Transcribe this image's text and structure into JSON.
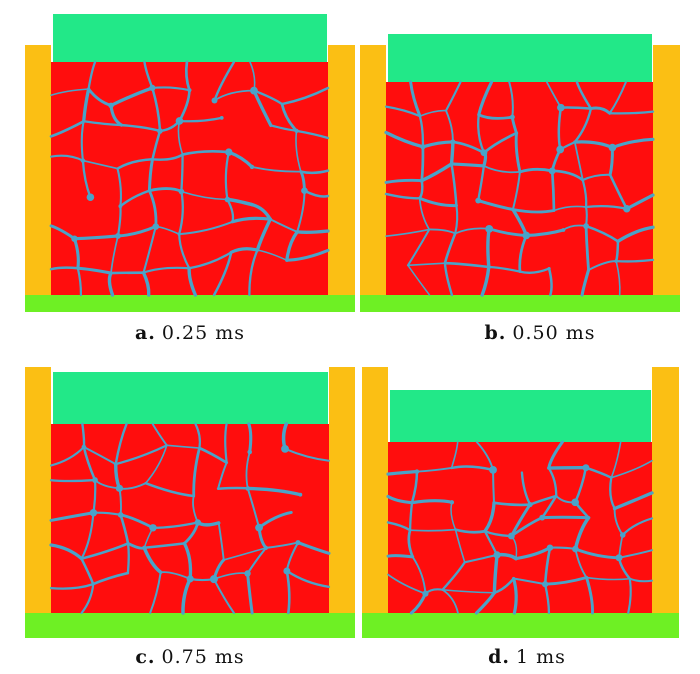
{
  "colors": {
    "wall": "#fbbf14",
    "plunger": "#22e888",
    "base": "#6ef024",
    "particle": "#ff0d0d",
    "binder": "#4aa3c8"
  },
  "panels": [
    {
      "label": "a.",
      "time": "0.25 ms",
      "compaction": 0.0
    },
    {
      "label": "b.",
      "time": "0.50 ms",
      "compaction": 0.08
    },
    {
      "label": "c.",
      "time": "0.75 ms",
      "compaction": 0.14
    },
    {
      "label": "d.",
      "time": "1 ms",
      "compaction": 0.2
    }
  ]
}
